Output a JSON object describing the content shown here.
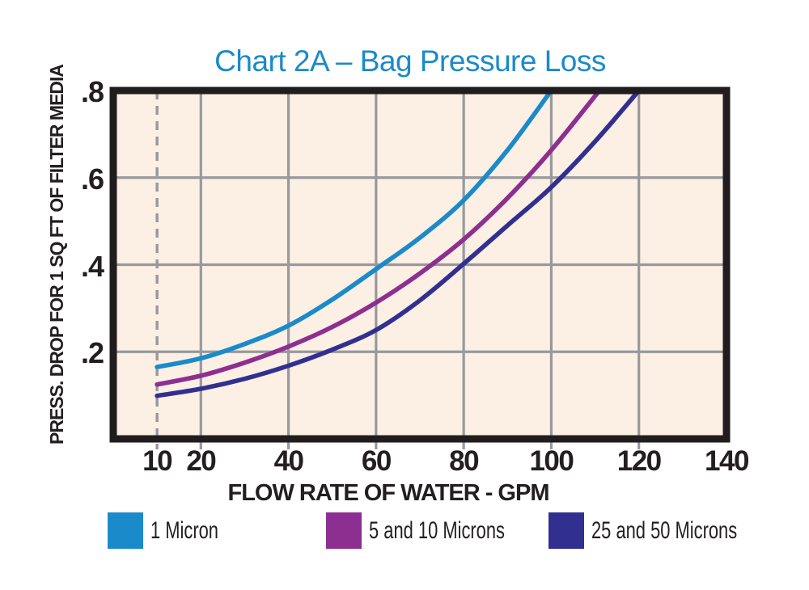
{
  "chart_data": {
    "type": "line",
    "title": "Chart 2A – Bag Pressure Loss",
    "xlabel": "FLOW RATE OF WATER - GPM",
    "ylabel": "PRESS. DROP FOR 1 SQ FT OF FILTER MEDIA",
    "xlim": [
      0,
      140
    ],
    "ylim": [
      0,
      0.8
    ],
    "x_ticks": [
      {
        "label": "10",
        "value": 10
      },
      {
        "label": "20",
        "value": 20
      },
      {
        "label": "40",
        "value": 40
      },
      {
        "label": "60",
        "value": 60
      },
      {
        "label": "80",
        "value": 80
      },
      {
        "label": "100",
        "value": 100
      },
      {
        "label": "120",
        "value": 120
      },
      {
        "label": "140",
        "value": 140
      }
    ],
    "y_ticks": [
      {
        "label": ".2",
        "value": 0.2
      },
      {
        "label": ".4",
        "value": 0.4
      },
      {
        "label": ".6",
        "value": 0.6
      },
      {
        "label": ".8",
        "value": 0.8
      }
    ],
    "grid": true,
    "x_guide_dashed": 10,
    "legend_position": "bottom",
    "colors": {
      "title": "#1a8aca",
      "text": "#231f20",
      "plot_bg": "#fcefe4",
      "gridline": "#97999c",
      "frame": "#211d1e"
    },
    "series": [
      {
        "name": "1 Micron",
        "color": "#1a8aca",
        "points": [
          [
            10,
            0.165
          ],
          [
            20,
            0.185
          ],
          [
            30,
            0.218
          ],
          [
            40,
            0.26
          ],
          [
            50,
            0.32
          ],
          [
            60,
            0.39
          ],
          [
            70,
            0.462
          ],
          [
            80,
            0.548
          ],
          [
            90,
            0.663
          ],
          [
            100,
            0.8
          ]
        ]
      },
      {
        "name": "5 and 10 Microns",
        "color": "#8d2f91",
        "points": [
          [
            10,
            0.125
          ],
          [
            20,
            0.145
          ],
          [
            30,
            0.175
          ],
          [
            40,
            0.212
          ],
          [
            50,
            0.257
          ],
          [
            60,
            0.313
          ],
          [
            70,
            0.38
          ],
          [
            80,
            0.458
          ],
          [
            90,
            0.553
          ],
          [
            100,
            0.663
          ],
          [
            111,
            0.8
          ]
        ]
      },
      {
        "name": "25 and 50 Microns",
        "color": "#313090",
        "points": [
          [
            10,
            0.099
          ],
          [
            20,
            0.115
          ],
          [
            30,
            0.138
          ],
          [
            40,
            0.168
          ],
          [
            50,
            0.205
          ],
          [
            60,
            0.25
          ],
          [
            70,
            0.318
          ],
          [
            80,
            0.402
          ],
          [
            90,
            0.49
          ],
          [
            100,
            0.578
          ],
          [
            110,
            0.683
          ],
          [
            120,
            0.8
          ]
        ]
      }
    ]
  }
}
